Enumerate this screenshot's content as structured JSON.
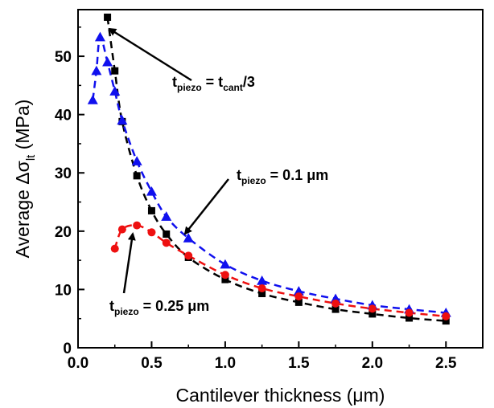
{
  "chart_data": {
    "type": "scatter",
    "xlabel": "Cantilever thickness (μm)",
    "ylabel_parts": {
      "main": "Average Δσ",
      "sub": "lt",
      "unit": " (MPa)"
    },
    "xlim": [
      0,
      2.75
    ],
    "ylim": [
      0,
      58
    ],
    "x_ticks": [
      0.0,
      0.5,
      1.0,
      1.5,
      2.0,
      2.5
    ],
    "y_ticks": [
      0,
      10,
      20,
      30,
      40,
      50
    ],
    "x_tick_labels": [
      "0.0",
      "0.5",
      "1.0",
      "1.5",
      "2.0",
      "2.5"
    ],
    "y_tick_labels": [
      "0",
      "10",
      "20",
      "30",
      "40",
      "50"
    ],
    "grid": false,
    "series": [
      {
        "key": "cant_third",
        "color": "#000000",
        "marker": "square",
        "points": [
          [
            0.2,
            56.7
          ],
          [
            0.25,
            47.5
          ],
          [
            0.3,
            38.8
          ],
          [
            0.4,
            29.5
          ],
          [
            0.5,
            23.5
          ],
          [
            0.6,
            19.5
          ],
          [
            0.75,
            15.5
          ],
          [
            1.0,
            11.7
          ],
          [
            1.25,
            9.3
          ],
          [
            1.5,
            7.8
          ],
          [
            1.75,
            6.6
          ],
          [
            2.0,
            5.8
          ],
          [
            2.25,
            5.1
          ],
          [
            2.5,
            4.6
          ]
        ]
      },
      {
        "key": "p0_1",
        "color": "#1010ee",
        "marker": "triangle",
        "points": [
          [
            0.1,
            42.5
          ],
          [
            0.125,
            47.5
          ],
          [
            0.15,
            53.3
          ],
          [
            0.2,
            49.0
          ],
          [
            0.25,
            44.0
          ],
          [
            0.3,
            39.0
          ],
          [
            0.4,
            32.0
          ],
          [
            0.5,
            26.8
          ],
          [
            0.6,
            22.5
          ],
          [
            0.75,
            18.8
          ],
          [
            1.0,
            14.3
          ],
          [
            1.25,
            11.5
          ],
          [
            1.5,
            9.7
          ],
          [
            1.75,
            8.4
          ],
          [
            2.0,
            7.3
          ],
          [
            2.25,
            6.6
          ],
          [
            2.5,
            6.0
          ]
        ]
      },
      {
        "key": "p0_25",
        "color": "#ee1010",
        "marker": "circle",
        "points": [
          [
            0.25,
            17.0
          ],
          [
            0.3,
            20.3
          ],
          [
            0.4,
            21.0
          ],
          [
            0.5,
            19.8
          ],
          [
            0.6,
            18.0
          ],
          [
            0.75,
            15.8
          ],
          [
            1.0,
            12.5
          ],
          [
            1.25,
            10.2
          ],
          [
            1.5,
            8.8
          ],
          [
            1.75,
            7.6
          ],
          [
            2.0,
            6.7
          ],
          [
            2.25,
            6.0
          ],
          [
            2.5,
            5.4
          ]
        ]
      }
    ],
    "annotations": [
      {
        "key": "cant_third",
        "parts": [
          "t",
          "piezo",
          " = t",
          "cant",
          "/3"
        ]
      },
      {
        "key": "p0_1",
        "parts": [
          "t",
          "piezo",
          " = 0.1 μm"
        ]
      },
      {
        "key": "p0_25",
        "parts": [
          "t",
          "piezo",
          " = 0.25 μm"
        ]
      }
    ]
  }
}
